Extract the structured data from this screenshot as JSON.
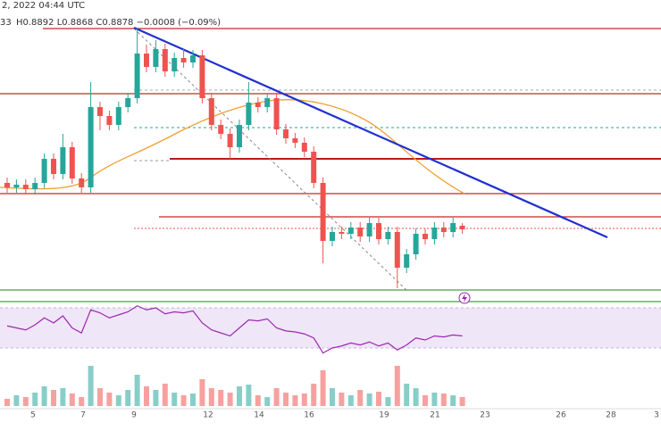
{
  "chart_data": {
    "type": "candlestick",
    "header_date": "2, 2022 04:44 UTC",
    "header_open": "33",
    "header_ohlc": "H0.8892 L0.8868 C0.8878 −0.0008 (−0.09%)",
    "x_labels": [
      "5",
      "7",
      "9",
      "12",
      "14",
      "16",
      "19",
      "21",
      "23",
      "26",
      "28",
      "3"
    ],
    "ylim": [
      0.8732,
      0.9392
    ],
    "up_color": "#26a69a",
    "down_color": "#ef5350",
    "open": [
      0.8982,
      0.8972,
      0.8978,
      0.8968,
      0.8982,
      0.9036,
      0.9002,
      0.9062,
      0.8992,
      0.8972,
      0.9152,
      0.9132,
      0.9112,
      0.9152,
      0.9172,
      0.9272,
      0.9242,
      0.9282,
      0.9232,
      0.9262,
      0.9252,
      0.9268,
      0.9172,
      0.9112,
      0.9092,
      0.9062,
      0.9112,
      0.9162,
      0.9152,
      0.9172,
      0.9102,
      0.9082,
      0.9072,
      0.9052,
      0.8982,
      0.8852,
      0.8872,
      0.8868,
      0.8882,
      0.8862,
      0.8892,
      0.8856,
      0.8872,
      0.8792,
      0.8822,
      0.8868,
      0.8856,
      0.8882,
      0.8872,
      0.8886
    ],
    "high": [
      0.8994,
      0.899,
      0.899,
      0.8994,
      0.9048,
      0.9048,
      0.9092,
      0.9074,
      0.9004,
      0.9208,
      0.9164,
      0.9144,
      0.9164,
      0.9184,
      0.9328,
      0.9292,
      0.9302,
      0.9294,
      0.9274,
      0.9282,
      0.928,
      0.928,
      0.9184,
      0.9124,
      0.9104,
      0.9124,
      0.9208,
      0.9174,
      0.9184,
      0.9184,
      0.9114,
      0.9094,
      0.9084,
      0.9064,
      0.8994,
      0.8884,
      0.8884,
      0.8894,
      0.8894,
      0.8904,
      0.8904,
      0.8884,
      0.8884,
      0.8834,
      0.888,
      0.888,
      0.8894,
      0.8894,
      0.8904,
      0.8892
    ],
    "low": [
      0.896,
      0.896,
      0.8956,
      0.8956,
      0.897,
      0.899,
      0.899,
      0.898,
      0.896,
      0.896,
      0.91,
      0.91,
      0.91,
      0.914,
      0.916,
      0.923,
      0.923,
      0.922,
      0.922,
      0.924,
      0.924,
      0.916,
      0.91,
      0.908,
      0.9036,
      0.905,
      0.91,
      0.914,
      0.914,
      0.909,
      0.907,
      0.906,
      0.904,
      0.897,
      0.8802,
      0.884,
      0.8856,
      0.8856,
      0.885,
      0.885,
      0.8844,
      0.8844,
      0.8746,
      0.878,
      0.881,
      0.8844,
      0.8844,
      0.886,
      0.886,
      0.8868
    ],
    "close": [
      0.8972,
      0.8978,
      0.8968,
      0.8982,
      0.9036,
      0.9002,
      0.9062,
      0.8992,
      0.8972,
      0.9152,
      0.9132,
      0.9112,
      0.9152,
      0.9172,
      0.9272,
      0.9242,
      0.9282,
      0.9232,
      0.9262,
      0.9252,
      0.9268,
      0.9172,
      0.9112,
      0.9092,
      0.9062,
      0.9112,
      0.9162,
      0.9152,
      0.9172,
      0.9102,
      0.9082,
      0.9072,
      0.9052,
      0.8982,
      0.8852,
      0.8872,
      0.8868,
      0.8882,
      0.8862,
      0.8892,
      0.8856,
      0.8872,
      0.8792,
      0.8822,
      0.8868,
      0.8856,
      0.8882,
      0.8872,
      0.8892,
      0.8878
    ],
    "rsi": [
      52,
      50,
      48,
      53,
      60,
      55,
      62,
      50,
      45,
      68,
      65,
      60,
      63,
      66,
      72,
      68,
      70,
      64,
      66,
      65,
      67,
      55,
      48,
      45,
      42,
      50,
      58,
      57,
      59,
      50,
      47,
      46,
      44,
      40,
      25,
      30,
      32,
      35,
      33,
      36,
      32,
      35,
      28,
      33,
      40,
      38,
      42,
      41,
      43,
      42
    ],
    "rsi_color": "#9c27b0",
    "volume": [
      8,
      12,
      10,
      15,
      22,
      18,
      20,
      14,
      10,
      45,
      20,
      15,
      12,
      18,
      35,
      22,
      18,
      25,
      15,
      12,
      14,
      30,
      20,
      18,
      15,
      22,
      24,
      12,
      10,
      20,
      15,
      12,
      14,
      25,
      40,
      20,
      15,
      12,
      18,
      14,
      16,
      10,
      45,
      25,
      20,
      12,
      15,
      14,
      12,
      10
    ]
  }
}
